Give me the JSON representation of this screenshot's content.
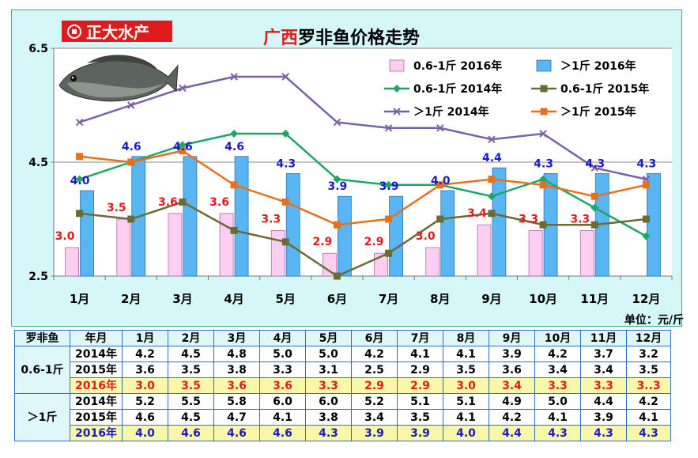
{
  "header": {
    "brand": "正大水产",
    "title_prefix": "广西",
    "title_main": "罗非鱼价格走势",
    "unit": "单位：元/斤"
  },
  "colors": {
    "panel_bg": "#d5f7f7",
    "bar_small_2016": "#fccff2",
    "bar_large_2016": "#5ab6f2",
    "line_small_2014": "#1ba866",
    "line_small_2015": "#6b6b35",
    "line_large_2014": "#7a62a6",
    "line_large_2015": "#e8701a",
    "label_red": "#e01b1b",
    "label_blue": "#1a1ac8"
  },
  "chart_data": {
    "type": "bar+line",
    "categories": [
      "1月",
      "2月",
      "3月",
      "4月",
      "5月",
      "6月",
      "7月",
      "8月",
      "9月",
      "10月",
      "11月",
      "12月"
    ],
    "ylim": [
      2.5,
      6.5
    ],
    "yticks": [
      "2.5",
      "4.5",
      "6.5"
    ],
    "bars": [
      {
        "name": "0.6-1斤 2016年",
        "values": [
          3.0,
          3.5,
          3.6,
          3.6,
          3.3,
          2.9,
          2.9,
          3.0,
          3.4,
          3.3,
          3.3,
          null
        ],
        "labels": [
          "3.0",
          "3.5",
          "3.6",
          "3.6",
          "3.3",
          "2.9",
          "2.9",
          "3.0",
          "3.4",
          "3.3",
          "3.3",
          ""
        ]
      },
      {
        "name": "＞1斤 2016年",
        "values": [
          4.0,
          4.6,
          4.6,
          4.6,
          4.3,
          3.9,
          3.9,
          4.0,
          4.4,
          4.3,
          4.3,
          4.3
        ],
        "labels": [
          "4.0",
          "4.6",
          "4.6",
          "4.6",
          "4.3",
          "3.9",
          "3.9",
          "4.0",
          "4.4",
          "4.3",
          "4.3",
          "4.3"
        ]
      }
    ],
    "lines": [
      {
        "name": "0.6-1斤 2014年",
        "values": [
          4.2,
          4.5,
          4.8,
          5.0,
          5.0,
          4.2,
          4.1,
          4.1,
          3.9,
          4.2,
          3.7,
          3.2
        ]
      },
      {
        "name": "0.6-1斤 2015年",
        "values": [
          3.6,
          3.5,
          3.8,
          3.3,
          3.1,
          2.5,
          2.9,
          3.5,
          3.6,
          3.4,
          3.4,
          3.5
        ]
      },
      {
        "name": "＞1斤 2014年",
        "values": [
          5.2,
          5.5,
          5.8,
          6.0,
          6.0,
          5.2,
          5.1,
          5.1,
          4.9,
          5.0,
          4.4,
          4.2
        ]
      },
      {
        "name": "＞1斤 2015年",
        "values": [
          4.6,
          4.5,
          4.7,
          4.1,
          3.8,
          3.4,
          3.5,
          4.1,
          4.2,
          4.1,
          3.9,
          4.1
        ]
      }
    ],
    "legend": [
      "0.6-1斤 2016年",
      "＞1斤 2016年",
      "0.6-1斤 2014年",
      "0.6-1斤 2015年",
      "＞1斤 2014年",
      "＞1斤 2015年"
    ]
  },
  "table": {
    "corner": "罗非鱼",
    "month_header": "年月",
    "months": [
      "1月",
      "2月",
      "3月",
      "4月",
      "5月",
      "6月",
      "7月",
      "8月",
      "9月",
      "10月",
      "11月",
      "12月"
    ],
    "groups": [
      {
        "name": "0.6-1斤",
        "rows": [
          {
            "year": "2014年",
            "values": [
              "4.2",
              "4.5",
              "4.8",
              "5.0",
              "5.0",
              "4.2",
              "4.1",
              "4.1",
              "3.9",
              "4.2",
              "3.7",
              "3.2"
            ]
          },
          {
            "year": "2015年",
            "values": [
              "3.6",
              "3.5",
              "3.8",
              "3.3",
              "3.1",
              "2.5",
              "2.9",
              "3.5",
              "3.6",
              "3.4",
              "3.4",
              "3.5"
            ]
          },
          {
            "year": "2016年",
            "values": [
              "3.0",
              "3.5",
              "3.6",
              "3.6",
              "3.3",
              "2.9",
              "2.9",
              "3.0",
              "3.4",
              "3.3",
              "3.3",
              "3..3"
            ],
            "highlight": "red"
          }
        ]
      },
      {
        "name": "＞1斤",
        "rows": [
          {
            "year": "2014年",
            "values": [
              "5.2",
              "5.5",
              "5.8",
              "6.0",
              "6.0",
              "5.2",
              "5.1",
              "5.1",
              "4.9",
              "5.0",
              "4.4",
              "4.2"
            ]
          },
          {
            "year": "2015年",
            "values": [
              "4.6",
              "4.5",
              "4.7",
              "4.1",
              "3.8",
              "3.4",
              "3.5",
              "4.1",
              "4.2",
              "4.1",
              "3.9",
              "4.1"
            ]
          },
          {
            "year": "2016年",
            "values": [
              "4.0",
              "4.6",
              "4.6",
              "4.6",
              "4.3",
              "3.9",
              "3.9",
              "4.0",
              "4.4",
              "4.3",
              "4.3",
              "4.3"
            ],
            "highlight": "blue"
          }
        ]
      }
    ]
  }
}
